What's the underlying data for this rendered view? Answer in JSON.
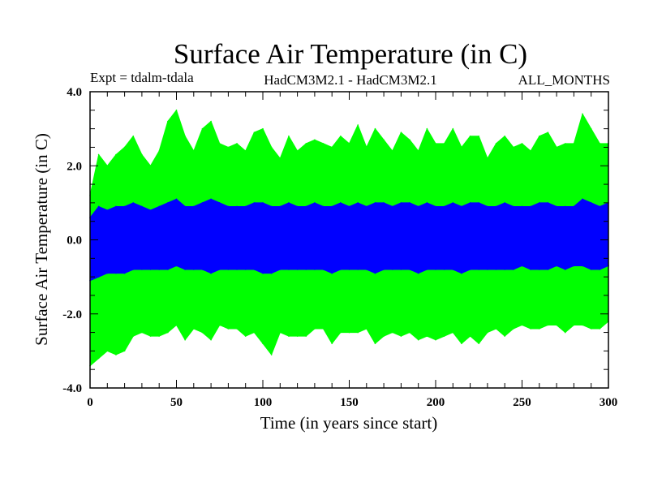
{
  "chart_data": {
    "type": "area",
    "title": "Surface Air Temperature (in C)",
    "subtitle_left": "Expt = tdalm-tdala",
    "subtitle_center": "HadCM3M2.1 - HadCM3M2.1",
    "subtitle_right": "ALL_MONTHS",
    "xlabel": "Time (in years since start)",
    "ylabel": "Surface Air Temperature (in C)",
    "xlim": [
      0,
      300
    ],
    "ylim": [
      -4.0,
      4.0
    ],
    "xticks": [
      "0",
      "50",
      "100",
      "150",
      "200",
      "250",
      "300"
    ],
    "yticks": [
      "4.0",
      "2.0",
      "0.0",
      "-2.0",
      "-4.0"
    ],
    "x": [
      0,
      5,
      10,
      15,
      20,
      25,
      30,
      35,
      40,
      45,
      50,
      55,
      60,
      65,
      70,
      75,
      80,
      85,
      90,
      95,
      100,
      105,
      110,
      115,
      120,
      125,
      130,
      135,
      140,
      145,
      150,
      155,
      160,
      165,
      170,
      175,
      180,
      185,
      190,
      195,
      200,
      205,
      210,
      215,
      220,
      225,
      230,
      235,
      240,
      245,
      250,
      255,
      260,
      265,
      270,
      275,
      280,
      285,
      290,
      295,
      300
    ],
    "series": [
      {
        "name": "green-max",
        "color": "#00ff00",
        "values": [
          1.2,
          2.3,
          2.0,
          2.3,
          2.5,
          2.8,
          2.3,
          2.0,
          2.4,
          3.2,
          3.5,
          2.8,
          2.4,
          3.0,
          3.2,
          2.6,
          2.5,
          2.6,
          2.4,
          2.9,
          3.0,
          2.5,
          2.2,
          2.8,
          2.4,
          2.6,
          2.7,
          2.6,
          2.5,
          2.8,
          2.6,
          3.1,
          2.5,
          3.0,
          2.7,
          2.4,
          2.9,
          2.7,
          2.4,
          3.0,
          2.6,
          2.6,
          3.0,
          2.5,
          2.8,
          2.8,
          2.2,
          2.6,
          2.8,
          2.5,
          2.6,
          2.4,
          2.8,
          2.9,
          2.5,
          2.6,
          2.6,
          3.4,
          3.0,
          2.6,
          2.6
        ]
      },
      {
        "name": "green-min",
        "color": "#00ff00",
        "values": [
          -3.4,
          -3.2,
          -3.0,
          -3.1,
          -3.0,
          -2.6,
          -2.5,
          -2.6,
          -2.6,
          -2.5,
          -2.3,
          -2.7,
          -2.4,
          -2.5,
          -2.7,
          -2.3,
          -2.4,
          -2.4,
          -2.6,
          -2.5,
          -2.8,
          -3.1,
          -2.5,
          -2.6,
          -2.6,
          -2.6,
          -2.4,
          -2.4,
          -2.8,
          -2.5,
          -2.5,
          -2.5,
          -2.4,
          -2.8,
          -2.6,
          -2.5,
          -2.6,
          -2.5,
          -2.7,
          -2.6,
          -2.7,
          -2.6,
          -2.5,
          -2.8,
          -2.6,
          -2.8,
          -2.5,
          -2.4,
          -2.6,
          -2.4,
          -2.3,
          -2.4,
          -2.4,
          -2.3,
          -2.3,
          -2.5,
          -2.3,
          -2.3,
          -2.4,
          -2.4,
          -2.2
        ]
      },
      {
        "name": "blue-max",
        "color": "#0000ff",
        "values": [
          0.6,
          0.9,
          0.8,
          0.9,
          0.9,
          1.0,
          0.9,
          0.8,
          0.9,
          1.0,
          1.1,
          0.9,
          0.9,
          1.0,
          1.1,
          1.0,
          0.9,
          0.9,
          0.9,
          1.0,
          1.0,
          0.9,
          0.9,
          1.0,
          0.9,
          0.9,
          1.0,
          0.9,
          0.9,
          1.0,
          0.9,
          1.0,
          0.9,
          1.0,
          1.0,
          0.9,
          1.0,
          1.0,
          0.9,
          1.0,
          0.9,
          0.9,
          1.0,
          0.9,
          1.0,
          1.0,
          0.9,
          0.9,
          1.0,
          0.9,
          0.9,
          0.9,
          1.0,
          1.0,
          0.9,
          0.9,
          0.9,
          1.1,
          1.0,
          0.9,
          1.0
        ]
      },
      {
        "name": "blue-min",
        "color": "#0000ff",
        "values": [
          -1.1,
          -1.0,
          -0.9,
          -0.9,
          -0.9,
          -0.8,
          -0.8,
          -0.8,
          -0.8,
          -0.8,
          -0.7,
          -0.8,
          -0.8,
          -0.8,
          -0.9,
          -0.8,
          -0.8,
          -0.8,
          -0.8,
          -0.8,
          -0.9,
          -0.9,
          -0.8,
          -0.8,
          -0.8,
          -0.8,
          -0.8,
          -0.8,
          -0.9,
          -0.8,
          -0.8,
          -0.8,
          -0.8,
          -0.9,
          -0.8,
          -0.8,
          -0.8,
          -0.8,
          -0.9,
          -0.8,
          -0.8,
          -0.8,
          -0.8,
          -0.9,
          -0.8,
          -0.8,
          -0.8,
          -0.8,
          -0.8,
          -0.8,
          -0.7,
          -0.8,
          -0.8,
          -0.8,
          -0.7,
          -0.8,
          -0.7,
          -0.7,
          -0.8,
          -0.8,
          -0.7
        ]
      }
    ],
    "grid": false,
    "legend": "none"
  }
}
